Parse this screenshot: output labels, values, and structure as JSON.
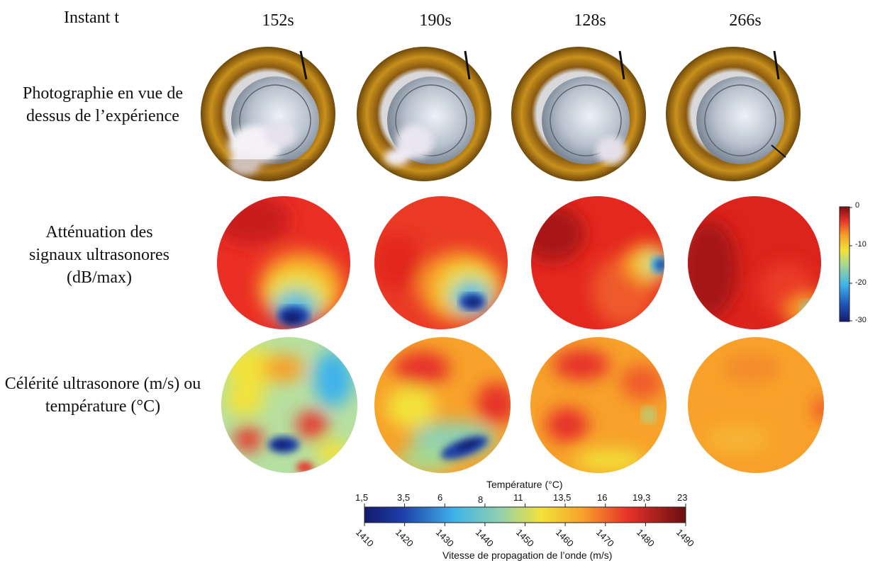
{
  "header": {
    "label": "Instant t"
  },
  "times": [
    "152s",
    "190s",
    "128s",
    "266s"
  ],
  "rows": {
    "photo": "Photographie en vue de dessus de l’expérience",
    "attenuation": "Atténuation des signaux ultrasonores (dB/max)",
    "celerity": "Célérité ultrasonore (m/s) ou température (°C)"
  },
  "attenuation_colorbar": {
    "ticks": [
      "0",
      "-10",
      "-20",
      "-30"
    ],
    "range_db": [
      -30,
      0
    ]
  },
  "bottom_colorbar": {
    "top_title": "Température (°C)",
    "top_ticks": [
      "1,5",
      "3,5",
      "6",
      "8",
      "11",
      "13,5",
      "16",
      "19,3",
      "23"
    ],
    "bottom_ticks": [
      "1410",
      "1420",
      "1430",
      "1440",
      "1450",
      "1460",
      "1470",
      "1480",
      "1490"
    ],
    "bottom_title": "Vitesse de propagation de l’onde (m/s)"
  },
  "colors": {
    "jet_dark_blue": "#1a237e",
    "jet_blue": "#1565c0",
    "jet_cyan": "#4fc3f7",
    "jet_green": "#a5d6a7",
    "jet_yellow": "#fdd835",
    "jet_orange": "#fb8c00",
    "jet_red": "#e53935",
    "jet_dark_red": "#7f0000",
    "photo_rim": "#b8860b"
  }
}
